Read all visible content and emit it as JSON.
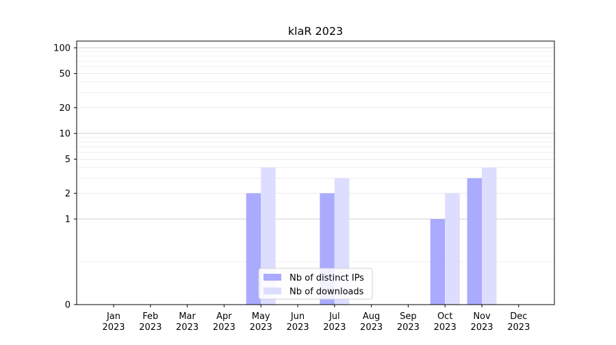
{
  "chart_data": {
    "type": "bar",
    "title": "klaR 2023",
    "xlabel": "",
    "ylabel": "",
    "y_scale": "symlog",
    "ylim": [
      0,
      120
    ],
    "y_ticks": [
      0,
      1,
      2,
      5,
      10,
      20,
      50,
      100
    ],
    "categories": [
      [
        "Jan",
        "2023"
      ],
      [
        "Feb",
        "2023"
      ],
      [
        "Mar",
        "2023"
      ],
      [
        "Apr",
        "2023"
      ],
      [
        "May",
        "2023"
      ],
      [
        "Jun",
        "2023"
      ],
      [
        "Jul",
        "2023"
      ],
      [
        "Aug",
        "2023"
      ],
      [
        "Sep",
        "2023"
      ],
      [
        "Oct",
        "2023"
      ],
      [
        "Nov",
        "2023"
      ],
      [
        "Dec",
        "2023"
      ]
    ],
    "series": [
      {
        "name": "Nb of distinct IPs",
        "color": "#aaaaff",
        "values": [
          0,
          0,
          0,
          0,
          2,
          0,
          2,
          0,
          0,
          1,
          3,
          0
        ]
      },
      {
        "name": "Nb of downloads",
        "color": "#ddddff",
        "values": [
          0,
          0,
          0,
          0,
          4,
          0,
          3,
          0,
          0,
          2,
          4,
          0
        ]
      }
    ],
    "grid": true,
    "legend_position": "bottom-center"
  }
}
